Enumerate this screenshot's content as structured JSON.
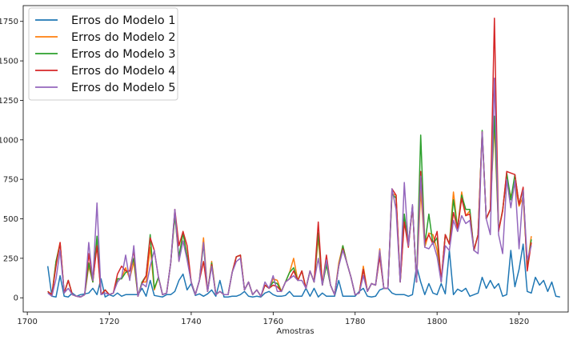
{
  "chart_data": {
    "type": "line",
    "xlabel": "Amostras",
    "ylabel": "",
    "xlim": [
      1699,
      1832
    ],
    "ylim": [
      -90,
      1850
    ],
    "xticks": [
      1700,
      1720,
      1740,
      1760,
      1780,
      1800,
      1820
    ],
    "yticks": [
      0,
      250,
      500,
      750,
      1000,
      1250,
      1500,
      1750
    ],
    "legend_position": "top-left",
    "grid": false,
    "x_start": 1705,
    "series": [
      {
        "name": "Erros do Modelo 1",
        "color": "#1f77b4",
        "values": [
          200,
          10,
          5,
          140,
          10,
          5,
          30,
          10,
          20,
          25,
          30,
          60,
          20,
          120,
          5,
          20,
          10,
          30,
          10,
          20,
          20,
          20,
          20,
          60,
          10,
          110,
          15,
          10,
          5,
          20,
          20,
          40,
          110,
          150,
          50,
          90,
          15,
          25,
          10,
          25,
          50,
          10,
          110,
          5,
          5,
          10,
          10,
          20,
          40,
          10,
          5,
          10,
          5,
          30,
          40,
          20,
          10,
          10,
          15,
          40,
          10,
          10,
          10,
          60,
          10,
          60,
          5,
          30,
          10,
          10,
          10,
          110,
          10,
          10,
          10,
          10,
          40,
          60,
          10,
          5,
          10,
          50,
          60,
          60,
          30,
          20,
          20,
          20,
          10,
          20,
          200,
          100,
          20,
          90,
          30,
          20,
          90,
          25,
          300,
          20,
          55,
          40,
          60,
          10,
          20,
          30,
          130,
          60,
          110,
          60,
          90,
          10,
          20,
          300,
          70,
          180,
          340,
          40,
          30,
          130,
          80,
          110,
          40,
          100,
          10,
          5
        ]
      },
      {
        "name": "Erros do Modelo 2",
        "color": "#ff7f0e",
        "values": [
          40,
          20,
          230,
          350,
          30,
          110,
          20,
          10,
          5,
          20,
          200,
          100,
          350,
          20,
          50,
          20,
          30,
          120,
          120,
          190,
          120,
          230,
          10,
          100,
          100,
          320,
          50,
          130,
          20,
          30,
          220,
          530,
          230,
          420,
          260,
          100,
          20,
          110,
          380,
          40,
          230,
          20,
          40,
          20,
          20,
          160,
          260,
          270,
          50,
          100,
          20,
          50,
          10,
          80,
          60,
          120,
          110,
          40,
          100,
          160,
          250,
          110,
          170,
          60,
          170,
          100,
          380,
          80,
          210,
          80,
          20,
          220,
          330,
          220,
          130,
          20,
          30,
          200,
          40,
          90,
          80,
          310,
          60,
          60,
          660,
          650,
          100,
          500,
          330,
          580,
          100,
          680,
          320,
          410,
          400,
          300,
          100,
          400,
          340,
          670,
          440,
          670,
          520,
          550,
          300,
          400,
          1050,
          500,
          560,
          1100,
          420,
          560,
          760,
          640,
          720,
          580,
          640,
          200,
          390
        ]
      },
      {
        "name": "Erros do Modelo 3",
        "color": "#2ca02c",
        "values": [
          40,
          10,
          230,
          340,
          30,
          110,
          20,
          10,
          5,
          20,
          220,
          100,
          390,
          20,
          50,
          20,
          30,
          120,
          120,
          160,
          170,
          250,
          10,
          100,
          140,
          400,
          60,
          130,
          20,
          30,
          220,
          520,
          260,
          410,
          260,
          100,
          20,
          110,
          340,
          40,
          220,
          20,
          40,
          20,
          20,
          160,
          260,
          270,
          50,
          100,
          20,
          50,
          10,
          80,
          60,
          100,
          90,
          40,
          100,
          160,
          190,
          110,
          170,
          60,
          170,
          100,
          410,
          80,
          210,
          80,
          20,
          200,
          330,
          220,
          130,
          20,
          30,
          180,
          40,
          90,
          80,
          270,
          60,
          60,
          660,
          630,
          100,
          530,
          340,
          580,
          100,
          1030,
          340,
          530,
          340,
          380,
          100,
          400,
          340,
          620,
          440,
          650,
          560,
          560,
          300,
          400,
          1060,
          500,
          560,
          1150,
          430,
          550,
          790,
          620,
          780,
          590,
          690,
          180,
          370
        ]
      },
      {
        "name": "Erros do Modelo 4",
        "color": "#d62728",
        "values": [
          40,
          20,
          200,
          350,
          30,
          110,
          20,
          10,
          5,
          20,
          280,
          110,
          330,
          20,
          50,
          20,
          30,
          150,
          200,
          170,
          170,
          300,
          10,
          90,
          140,
          380,
          300,
          130,
          20,
          30,
          220,
          560,
          330,
          420,
          330,
          100,
          20,
          110,
          230,
          40,
          210,
          20,
          40,
          20,
          20,
          160,
          260,
          270,
          50,
          100,
          20,
          50,
          10,
          80,
          60,
          80,
          70,
          40,
          100,
          120,
          170,
          110,
          170,
          60,
          170,
          100,
          480,
          80,
          270,
          80,
          20,
          200,
          310,
          220,
          130,
          20,
          30,
          180,
          40,
          90,
          80,
          260,
          60,
          60,
          690,
          650,
          100,
          480,
          320,
          580,
          100,
          800,
          350,
          400,
          340,
          420,
          110,
          400,
          340,
          540,
          440,
          630,
          520,
          530,
          300,
          400,
          1050,
          500,
          560,
          1770,
          420,
          550,
          800,
          790,
          780,
          590,
          700,
          170,
          350
        ]
      },
      {
        "name": "Erros do Modelo 5",
        "color": "#9467bd",
        "values": [
          30,
          10,
          120,
          300,
          30,
          60,
          20,
          10,
          5,
          20,
          350,
          110,
          600,
          20,
          30,
          20,
          30,
          100,
          130,
          270,
          110,
          330,
          10,
          90,
          70,
          200,
          300,
          130,
          20,
          30,
          220,
          560,
          230,
          360,
          240,
          100,
          20,
          110,
          350,
          40,
          200,
          20,
          40,
          20,
          20,
          160,
          230,
          250,
          50,
          100,
          20,
          50,
          10,
          100,
          60,
          140,
          40,
          40,
          100,
          120,
          140,
          110,
          110,
          60,
          170,
          100,
          250,
          80,
          240,
          80,
          20,
          200,
          300,
          220,
          130,
          20,
          30,
          140,
          40,
          90,
          80,
          300,
          60,
          60,
          690,
          560,
          100,
          730,
          330,
          590,
          100,
          770,
          320,
          310,
          350,
          260,
          100,
          330,
          300,
          490,
          420,
          520,
          470,
          490,
          300,
          280,
          1050,
          500,
          400,
          1390,
          400,
          280,
          750,
          570,
          740,
          310,
          680,
          240,
          330
        ]
      }
    ]
  }
}
